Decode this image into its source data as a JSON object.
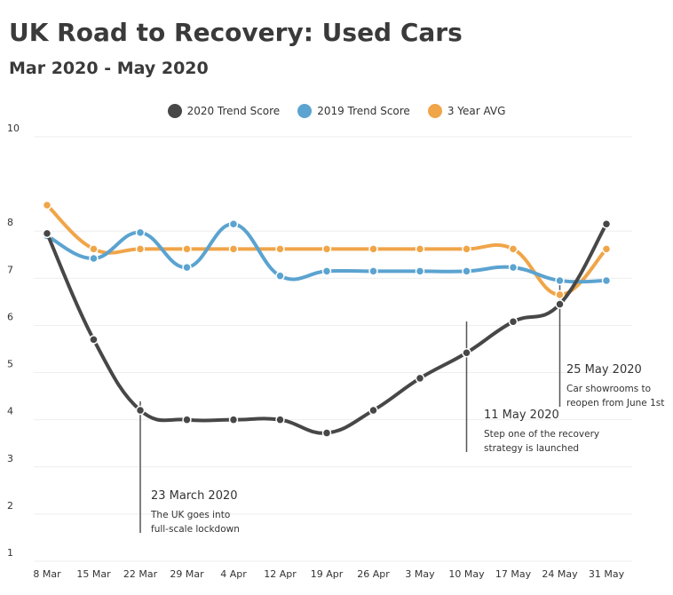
{
  "header": {
    "title": "UK Road to Recovery: Used Cars",
    "subtitle": "Mar 2020 - May 2020"
  },
  "chart_data": {
    "type": "line",
    "title": "UK Road to Recovery: Used Cars",
    "subtitle": "Mar 2020 - May 2020",
    "xlabel": "",
    "ylabel": "",
    "categories": [
      "8 Mar",
      "15 Mar",
      "22 Mar",
      "29 Mar",
      "4 Apr",
      "12 Apr",
      "19 Apr",
      "26 Apr",
      "3 May",
      "10 May",
      "17 May",
      "24 May",
      "31 May"
    ],
    "ylim": [
      1,
      10
    ],
    "yticks": [
      "1",
      "2",
      "3",
      "4",
      "5",
      "6",
      "7",
      "8",
      "10"
    ],
    "grid": true,
    "legend_position": "top-center",
    "series": [
      {
        "name": "2020 Trend Score",
        "color": "#474747",
        "values": [
          7.95,
          5.7,
          4.2,
          4.0,
          4.0,
          4.0,
          3.72,
          4.2,
          4.88,
          5.42,
          6.08,
          6.45,
          8.15
        ]
      },
      {
        "name": "2019 Trend Score",
        "color": "#5ba3d0",
        "values": [
          7.9,
          7.42,
          7.97,
          7.23,
          8.15,
          7.05,
          7.15,
          7.15,
          7.15,
          7.15,
          7.23,
          6.95,
          6.95
        ]
      },
      {
        "name": "3 Year AVG",
        "color": "#f0a549",
        "values": [
          8.55,
          7.62,
          7.62,
          7.62,
          7.62,
          7.62,
          7.62,
          7.62,
          7.62,
          7.62,
          7.62,
          6.65,
          7.62
        ]
      }
    ],
    "annotations": [
      {
        "title": "23 March 2020",
        "lines": [
          "The UK goes into",
          "full-scale lockdown"
        ],
        "category": "22 Mar"
      },
      {
        "title": "11 May 2020",
        "lines": [
          "Step one of the recovery",
          "strategy is launched"
        ],
        "category": "10 May"
      },
      {
        "title": "25 May 2020",
        "lines": [
          "Car showrooms to",
          "reopen from June 1st"
        ],
        "category": "24 May"
      }
    ]
  }
}
